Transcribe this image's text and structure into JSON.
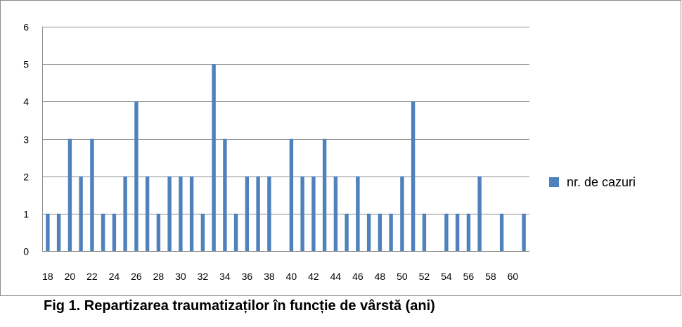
{
  "caption": "Fig 1. Repartizarea traumatizaților în funcție de vârstă (ani)",
  "chart_data": {
    "type": "bar",
    "title": "",
    "xlabel": "",
    "ylabel": "",
    "ylim": [
      0,
      6
    ],
    "yticks": [
      0,
      1,
      2,
      3,
      4,
      5,
      6
    ],
    "grid": true,
    "legend_position": "right",
    "bar_color": "#4f81bd",
    "categories": [
      18,
      19,
      20,
      21,
      22,
      23,
      24,
      25,
      26,
      27,
      28,
      29,
      30,
      31,
      32,
      33,
      34,
      35,
      36,
      37,
      38,
      39,
      40,
      41,
      42,
      43,
      44,
      45,
      46,
      47,
      48,
      49,
      50,
      51,
      52,
      53,
      54,
      55,
      56,
      57,
      58,
      59,
      60,
      61
    ],
    "tick_labels": [
      18,
      20,
      22,
      24,
      26,
      28,
      30,
      32,
      34,
      36,
      38,
      40,
      42,
      44,
      46,
      48,
      50,
      52,
      54,
      56,
      58,
      60
    ],
    "series": [
      {
        "name": "nr. de cazuri",
        "values": [
          1,
          1,
          3,
          2,
          3,
          1,
          1,
          2,
          4,
          2,
          1,
          2,
          2,
          2,
          1,
          5,
          3,
          1,
          2,
          2,
          2,
          0,
          3,
          2,
          2,
          3,
          2,
          1,
          2,
          1,
          1,
          1,
          2,
          4,
          1,
          0,
          1,
          1,
          1,
          2,
          0,
          1,
          0,
          1
        ]
      }
    ]
  }
}
